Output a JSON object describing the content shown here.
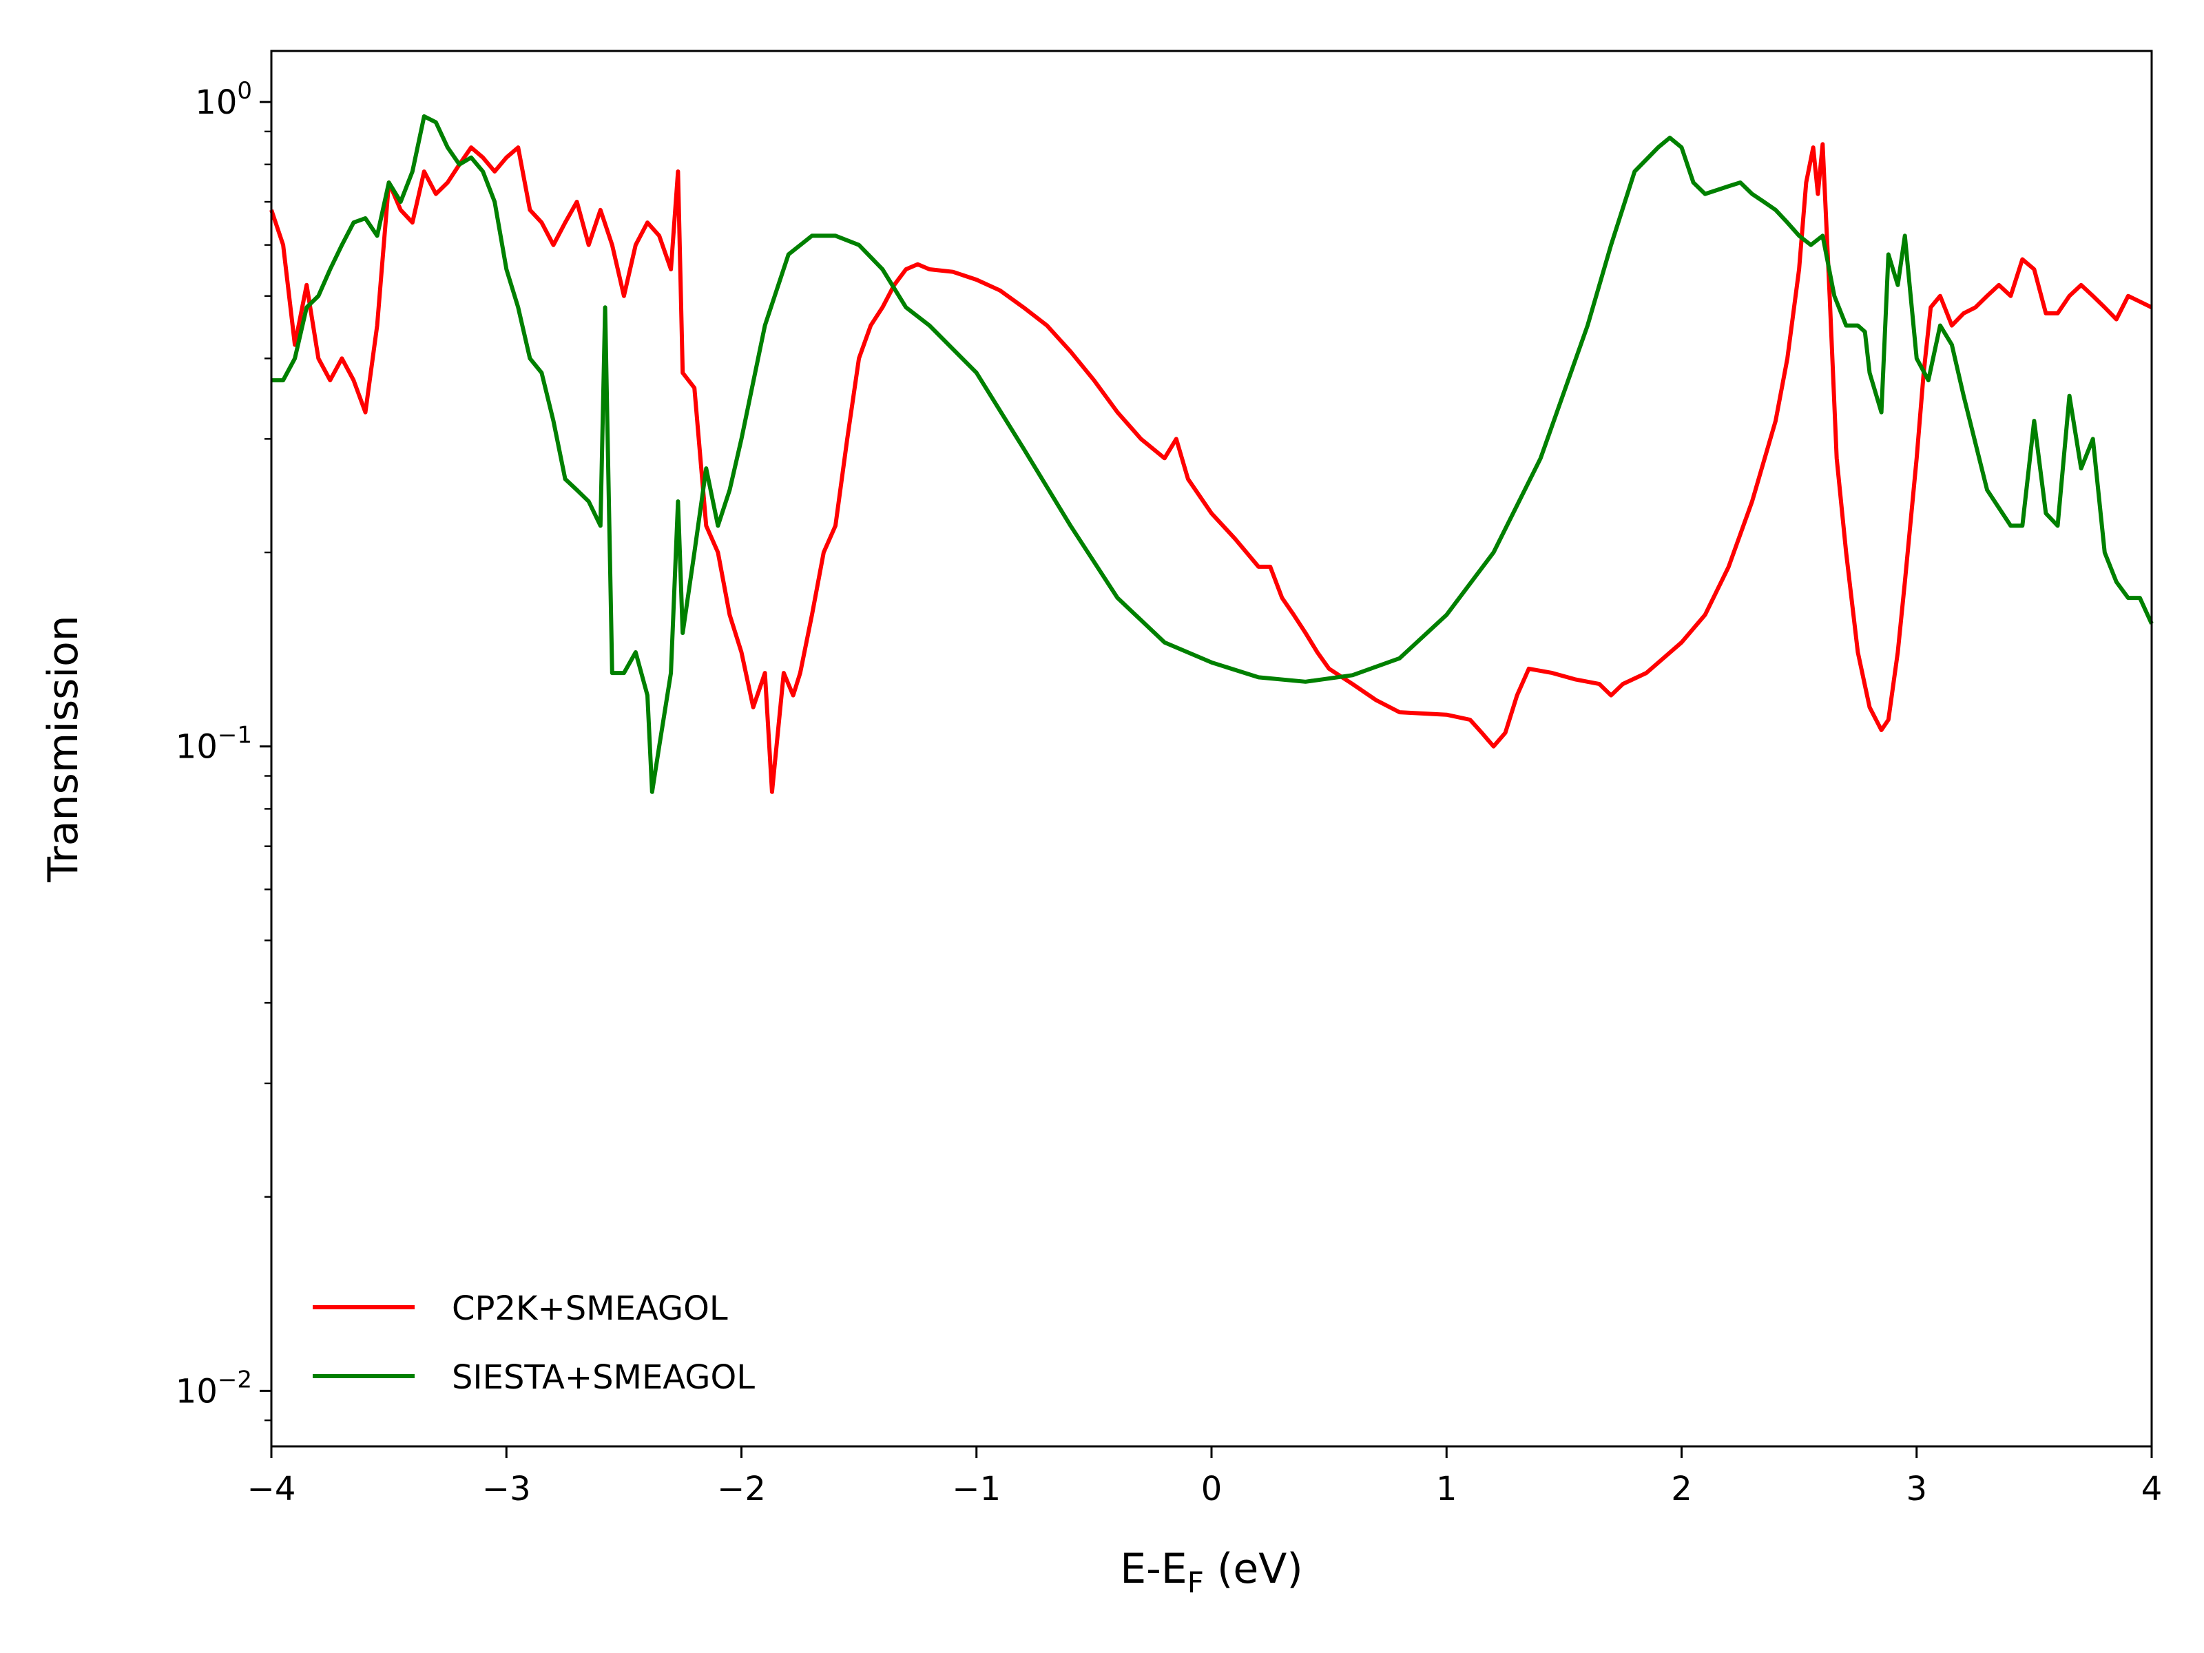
{
  "chart_data": {
    "type": "line",
    "xlabel": "E-E",
    "xlabel_sub": "F",
    "xlabel_unit": " (eV)",
    "ylabel": "Transmission",
    "xlim": [
      -4,
      4
    ],
    "ylim": [
      0.0082,
      1.2
    ],
    "yscale": "log",
    "grid": false,
    "legend": "lower-left",
    "x_ticks": [
      {
        "value": -4,
        "label": "−4"
      },
      {
        "value": -3,
        "label": "−3"
      },
      {
        "value": -2,
        "label": "−2"
      },
      {
        "value": -1,
        "label": "−1"
      },
      {
        "value": 0,
        "label": "0"
      },
      {
        "value": 1,
        "label": "1"
      },
      {
        "value": 2,
        "label": "2"
      },
      {
        "value": 3,
        "label": "3"
      },
      {
        "value": 4,
        "label": "4"
      }
    ],
    "y_ticks": [
      {
        "value": 1.0,
        "base": "10",
        "exp": "0"
      },
      {
        "value": 0.1,
        "base": "10",
        "exp": "−1"
      },
      {
        "value": 0.01,
        "base": "10",
        "exp": "−2"
      }
    ],
    "series": [
      {
        "name": "CP2K+SMEAGOL",
        "color": "#ff0000",
        "points": [
          [
            -4.0,
            0.68
          ],
          [
            -3.95,
            0.6
          ],
          [
            -3.9,
            0.42
          ],
          [
            -3.85,
            0.52
          ],
          [
            -3.8,
            0.4
          ],
          [
            -3.75,
            0.37
          ],
          [
            -3.7,
            0.4
          ],
          [
            -3.65,
            0.37
          ],
          [
            -3.6,
            0.33
          ],
          [
            -3.55,
            0.45
          ],
          [
            -3.5,
            0.75
          ],
          [
            -3.45,
            0.68
          ],
          [
            -3.4,
            0.65
          ],
          [
            -3.35,
            0.78
          ],
          [
            -3.3,
            0.72
          ],
          [
            -3.25,
            0.75
          ],
          [
            -3.2,
            0.8
          ],
          [
            -3.15,
            0.85
          ],
          [
            -3.1,
            0.82
          ],
          [
            -3.05,
            0.78
          ],
          [
            -3.0,
            0.82
          ],
          [
            -2.95,
            0.85
          ],
          [
            -2.9,
            0.68
          ],
          [
            -2.85,
            0.65
          ],
          [
            -2.8,
            0.6
          ],
          [
            -2.75,
            0.65
          ],
          [
            -2.7,
            0.7
          ],
          [
            -2.65,
            0.6
          ],
          [
            -2.6,
            0.68
          ],
          [
            -2.55,
            0.6
          ],
          [
            -2.5,
            0.5
          ],
          [
            -2.45,
            0.6
          ],
          [
            -2.4,
            0.65
          ],
          [
            -2.35,
            0.62
          ],
          [
            -2.3,
            0.55
          ],
          [
            -2.27,
            0.78
          ],
          [
            -2.25,
            0.38
          ],
          [
            -2.2,
            0.36
          ],
          [
            -2.15,
            0.22
          ],
          [
            -2.1,
            0.2
          ],
          [
            -2.05,
            0.16
          ],
          [
            -2.0,
            0.14
          ],
          [
            -1.95,
            0.115
          ],
          [
            -1.9,
            0.13
          ],
          [
            -1.87,
            0.085
          ],
          [
            -1.82,
            0.13
          ],
          [
            -1.78,
            0.12
          ],
          [
            -1.75,
            0.13
          ],
          [
            -1.7,
            0.16
          ],
          [
            -1.65,
            0.2
          ],
          [
            -1.6,
            0.22
          ],
          [
            -1.55,
            0.3
          ],
          [
            -1.5,
            0.4
          ],
          [
            -1.45,
            0.45
          ],
          [
            -1.4,
            0.48
          ],
          [
            -1.35,
            0.52
          ],
          [
            -1.3,
            0.55
          ],
          [
            -1.25,
            0.56
          ],
          [
            -1.2,
            0.55
          ],
          [
            -1.1,
            0.545
          ],
          [
            -1.0,
            0.53
          ],
          [
            -0.9,
            0.51
          ],
          [
            -0.8,
            0.48
          ],
          [
            -0.7,
            0.45
          ],
          [
            -0.6,
            0.41
          ],
          [
            -0.5,
            0.37
          ],
          [
            -0.4,
            0.33
          ],
          [
            -0.3,
            0.3
          ],
          [
            -0.2,
            0.28
          ],
          [
            -0.15,
            0.3
          ],
          [
            -0.1,
            0.26
          ],
          [
            0.0,
            0.23
          ],
          [
            0.1,
            0.21
          ],
          [
            0.2,
            0.19
          ],
          [
            0.25,
            0.19
          ],
          [
            0.3,
            0.17
          ],
          [
            0.35,
            0.16
          ],
          [
            0.4,
            0.15
          ],
          [
            0.45,
            0.14
          ],
          [
            0.5,
            0.132
          ],
          [
            0.6,
            0.125
          ],
          [
            0.7,
            0.118
          ],
          [
            0.8,
            0.113
          ],
          [
            1.0,
            0.112
          ],
          [
            1.1,
            0.11
          ],
          [
            1.15,
            0.105
          ],
          [
            1.2,
            0.1
          ],
          [
            1.25,
            0.105
          ],
          [
            1.3,
            0.12
          ],
          [
            1.35,
            0.132
          ],
          [
            1.45,
            0.13
          ],
          [
            1.55,
            0.127
          ],
          [
            1.65,
            0.125
          ],
          [
            1.7,
            0.12
          ],
          [
            1.75,
            0.125
          ],
          [
            1.85,
            0.13
          ],
          [
            2.0,
            0.145
          ],
          [
            2.1,
            0.16
          ],
          [
            2.2,
            0.19
          ],
          [
            2.3,
            0.24
          ],
          [
            2.4,
            0.32
          ],
          [
            2.45,
            0.4
          ],
          [
            2.5,
            0.55
          ],
          [
            2.53,
            0.75
          ],
          [
            2.56,
            0.85
          ],
          [
            2.58,
            0.72
          ],
          [
            2.6,
            0.86
          ],
          [
            2.63,
            0.5
          ],
          [
            2.66,
            0.28
          ],
          [
            2.7,
            0.2
          ],
          [
            2.75,
            0.14
          ],
          [
            2.8,
            0.115
          ],
          [
            2.85,
            0.106
          ],
          [
            2.88,
            0.11
          ],
          [
            2.92,
            0.14
          ],
          [
            2.95,
            0.18
          ],
          [
            3.0,
            0.28
          ],
          [
            3.03,
            0.38
          ],
          [
            3.06,
            0.48
          ],
          [
            3.1,
            0.5
          ],
          [
            3.15,
            0.45
          ],
          [
            3.2,
            0.47
          ],
          [
            3.25,
            0.48
          ],
          [
            3.3,
            0.5
          ],
          [
            3.35,
            0.52
          ],
          [
            3.4,
            0.5
          ],
          [
            3.45,
            0.57
          ],
          [
            3.5,
            0.55
          ],
          [
            3.55,
            0.47
          ],
          [
            3.6,
            0.47
          ],
          [
            3.65,
            0.5
          ],
          [
            3.7,
            0.52
          ],
          [
            3.75,
            0.5
          ],
          [
            3.8,
            0.48
          ],
          [
            3.85,
            0.46
          ],
          [
            3.9,
            0.5
          ],
          [
            3.95,
            0.49
          ],
          [
            4.0,
            0.48
          ]
        ]
      },
      {
        "name": "SIESTA+SMEAGOL",
        "color": "#008000",
        "points": [
          [
            -4.0,
            0.37
          ],
          [
            -3.95,
            0.37
          ],
          [
            -3.9,
            0.4
          ],
          [
            -3.85,
            0.48
          ],
          [
            -3.8,
            0.5
          ],
          [
            -3.75,
            0.55
          ],
          [
            -3.7,
            0.6
          ],
          [
            -3.65,
            0.65
          ],
          [
            -3.6,
            0.66
          ],
          [
            -3.55,
            0.62
          ],
          [
            -3.5,
            0.75
          ],
          [
            -3.45,
            0.7
          ],
          [
            -3.4,
            0.78
          ],
          [
            -3.35,
            0.95
          ],
          [
            -3.3,
            0.93
          ],
          [
            -3.25,
            0.85
          ],
          [
            -3.2,
            0.8
          ],
          [
            -3.15,
            0.82
          ],
          [
            -3.1,
            0.78
          ],
          [
            -3.05,
            0.7
          ],
          [
            -3.0,
            0.55
          ],
          [
            -2.95,
            0.48
          ],
          [
            -2.9,
            0.4
          ],
          [
            -2.85,
            0.38
          ],
          [
            -2.8,
            0.32
          ],
          [
            -2.75,
            0.26
          ],
          [
            -2.7,
            0.25
          ],
          [
            -2.65,
            0.24
          ],
          [
            -2.6,
            0.22
          ],
          [
            -2.58,
            0.48
          ],
          [
            -2.55,
            0.13
          ],
          [
            -2.5,
            0.13
          ],
          [
            -2.45,
            0.14
          ],
          [
            -2.4,
            0.12
          ],
          [
            -2.38,
            0.085
          ],
          [
            -2.35,
            0.1
          ],
          [
            -2.3,
            0.13
          ],
          [
            -2.27,
            0.24
          ],
          [
            -2.25,
            0.15
          ],
          [
            -2.2,
            0.2
          ],
          [
            -2.15,
            0.27
          ],
          [
            -2.1,
            0.22
          ],
          [
            -2.05,
            0.25
          ],
          [
            -2.0,
            0.3
          ],
          [
            -1.9,
            0.45
          ],
          [
            -1.8,
            0.58
          ],
          [
            -1.7,
            0.62
          ],
          [
            -1.6,
            0.62
          ],
          [
            -1.5,
            0.6
          ],
          [
            -1.4,
            0.55
          ],
          [
            -1.3,
            0.48
          ],
          [
            -1.2,
            0.45
          ],
          [
            -1.0,
            0.38
          ],
          [
            -0.8,
            0.29
          ],
          [
            -0.6,
            0.22
          ],
          [
            -0.4,
            0.17
          ],
          [
            -0.2,
            0.145
          ],
          [
            0.0,
            0.135
          ],
          [
            0.2,
            0.128
          ],
          [
            0.4,
            0.126
          ],
          [
            0.6,
            0.129
          ],
          [
            0.8,
            0.137
          ],
          [
            1.0,
            0.16
          ],
          [
            1.2,
            0.2
          ],
          [
            1.4,
            0.28
          ],
          [
            1.6,
            0.45
          ],
          [
            1.7,
            0.6
          ],
          [
            1.8,
            0.78
          ],
          [
            1.9,
            0.85
          ],
          [
            1.95,
            0.88
          ],
          [
            2.0,
            0.85
          ],
          [
            2.05,
            0.75
          ],
          [
            2.1,
            0.72
          ],
          [
            2.2,
            0.74
          ],
          [
            2.25,
            0.75
          ],
          [
            2.3,
            0.72
          ],
          [
            2.35,
            0.7
          ],
          [
            2.4,
            0.68
          ],
          [
            2.45,
            0.65
          ],
          [
            2.5,
            0.62
          ],
          [
            2.55,
            0.6
          ],
          [
            2.6,
            0.62
          ],
          [
            2.65,
            0.5
          ],
          [
            2.7,
            0.45
          ],
          [
            2.75,
            0.45
          ],
          [
            2.78,
            0.44
          ],
          [
            2.8,
            0.38
          ],
          [
            2.85,
            0.33
          ],
          [
            2.88,
            0.58
          ],
          [
            2.92,
            0.52
          ],
          [
            2.95,
            0.62
          ],
          [
            3.0,
            0.4
          ],
          [
            3.05,
            0.37
          ],
          [
            3.1,
            0.45
          ],
          [
            3.15,
            0.42
          ],
          [
            3.2,
            0.35
          ],
          [
            3.3,
            0.25
          ],
          [
            3.4,
            0.22
          ],
          [
            3.45,
            0.22
          ],
          [
            3.5,
            0.32
          ],
          [
            3.55,
            0.23
          ],
          [
            3.6,
            0.22
          ],
          [
            3.65,
            0.35
          ],
          [
            3.7,
            0.27
          ],
          [
            3.75,
            0.3
          ],
          [
            3.8,
            0.2
          ],
          [
            3.85,
            0.18
          ],
          [
            3.9,
            0.17
          ],
          [
            3.95,
            0.17
          ],
          [
            4.0,
            0.155
          ]
        ]
      }
    ]
  }
}
